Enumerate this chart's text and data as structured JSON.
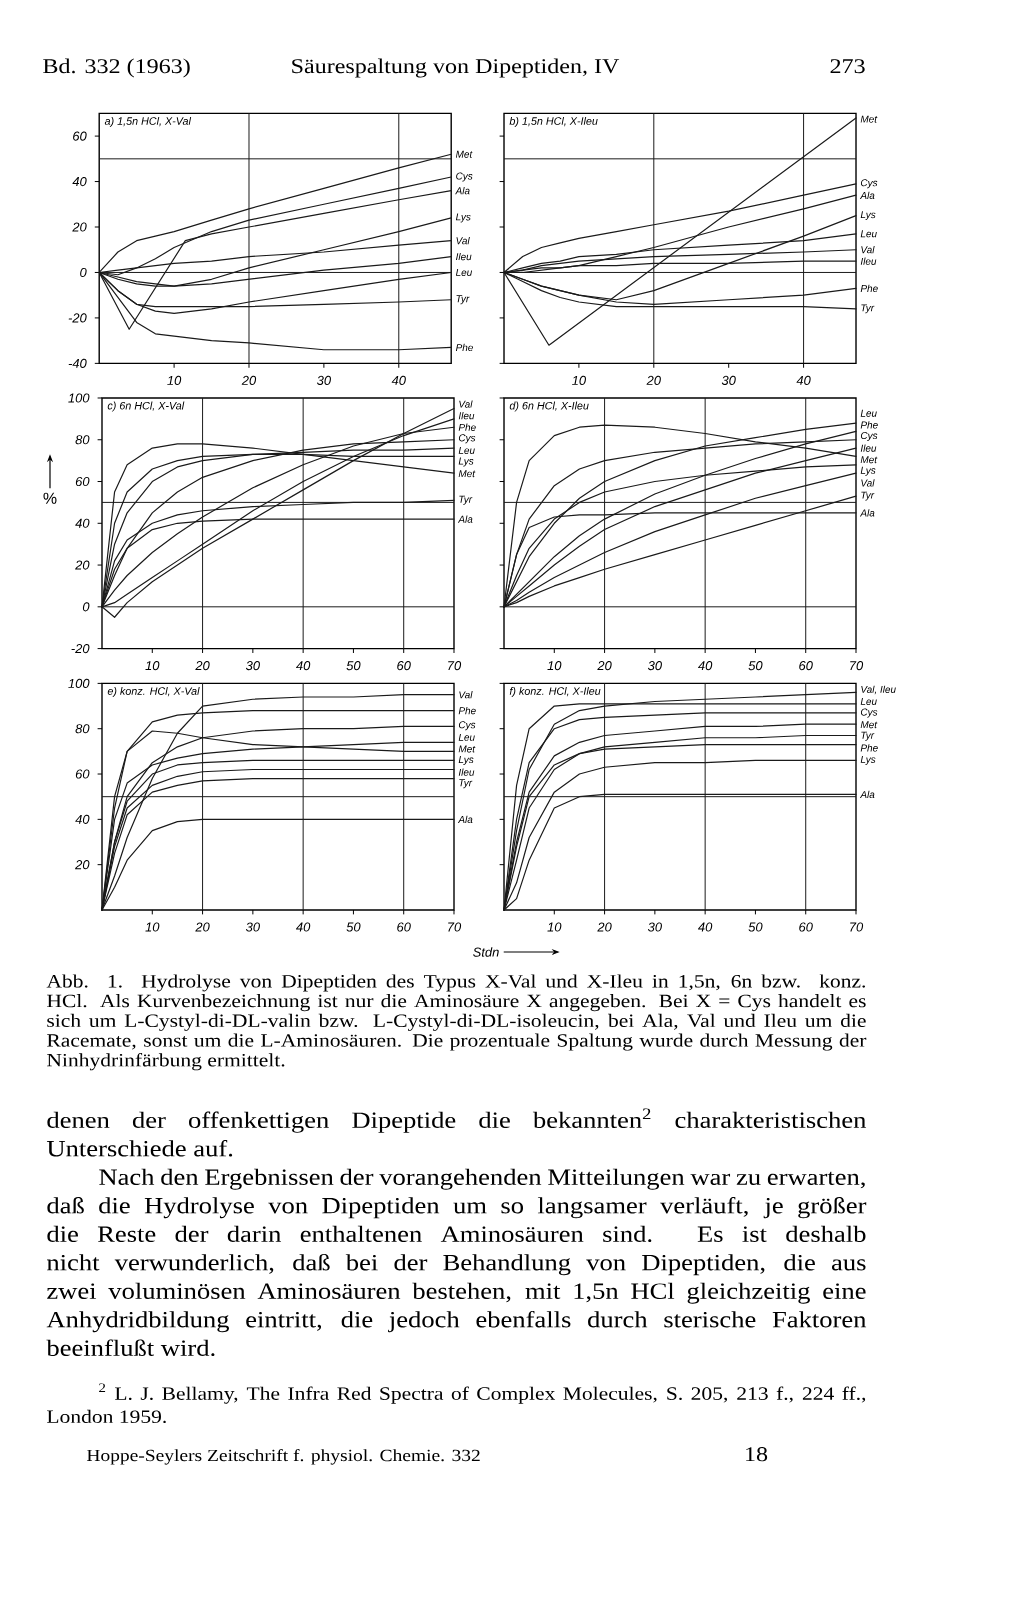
{
  "chart_data": [
    {
      "type": "line",
      "title": "a) 1,5n HCl, X-Val",
      "x": [
        0,
        2.5,
        5,
        7.5,
        10,
        15,
        20,
        30,
        40,
        47
      ],
      "series": [
        {
          "name": "Met",
          "color": "#1a1a1a",
          "values": [
            0,
            9,
            14,
            16,
            18,
            23,
            28,
            37,
            46,
            52
          ]
        },
        {
          "name": "Cys",
          "color": "#1a1a1a",
          "values": [
            0,
            -1,
            2,
            6,
            11,
            18,
            23,
            30,
            37,
            42
          ]
        },
        {
          "name": "Ala",
          "color": "#1a1a1a",
          "x": [
            0,
            4,
            11.5,
            15,
            20,
            30,
            40,
            47
          ],
          "values": [
            0,
            -25,
            14,
            17,
            20,
            26,
            32,
            36
          ]
        },
        {
          "name": "Lys",
          "color": "#1a1a1a",
          "values": [
            0,
            -3,
            -5,
            -6,
            -6,
            -3,
            2,
            10,
            18,
            24
          ]
        },
        {
          "name": "Val",
          "color": "#1a1a1a",
          "values": [
            0,
            1,
            2,
            3,
            4,
            5,
            7,
            9,
            12,
            14
          ]
        },
        {
          "name": "Ileu",
          "color": "#1a1a1a",
          "values": [
            0,
            -2,
            -4,
            -5,
            -6,
            -5,
            -3,
            1,
            4,
            7
          ]
        },
        {
          "name": "Leu",
          "color": "#1a1a1a",
          "values": [
            0,
            -8,
            -14,
            -17,
            -18,
            -16,
            -13,
            -8,
            -3,
            0
          ]
        },
        {
          "name": "Tyr",
          "color": "#1a1a1a",
          "values": [
            0,
            -8,
            -14,
            -15,
            -15,
            -15,
            -15,
            -14,
            -13,
            -12
          ]
        },
        {
          "name": "Phe",
          "color": "#1a1a1a",
          "values": [
            0,
            -11,
            -22,
            -27,
            -28,
            -30,
            -31,
            -34,
            -34,
            -33
          ]
        }
      ],
      "xlim": [
        0,
        47
      ],
      "ylim": [
        -40,
        70
      ],
      "xticks": [
        10,
        20,
        30,
        40
      ],
      "yticks": [
        -40,
        -20,
        0,
        20,
        40,
        60
      ],
      "ref_lines": [
        {
          "axis": "x",
          "value": 20
        },
        {
          "axis": "x",
          "value": 40
        },
        {
          "axis": "y",
          "value": 0
        },
        {
          "axis": "y",
          "value": 50
        }
      ]
    },
    {
      "type": "line",
      "title": "b) 1,5n HCl, X-Ileu",
      "x": [
        0,
        2.5,
        5,
        7.5,
        10,
        15,
        20,
        30,
        40,
        47
      ],
      "series": [
        {
          "name": "Met",
          "color": "#1a1a1a",
          "x": [
            0,
            6,
            47
          ],
          "values": [
            0,
            -32,
            68
          ]
        },
        {
          "name": "Cys",
          "color": "#1a1a1a",
          "values": [
            0,
            7,
            11,
            13,
            15,
            18,
            21,
            27,
            34,
            39
          ]
        },
        {
          "name": "Ala",
          "color": "#1a1a1a",
          "values": [
            0,
            0,
            1,
            2,
            3,
            7,
            11,
            20,
            28,
            34
          ]
        },
        {
          "name": "Lys",
          "color": "#1a1a1a",
          "values": [
            0,
            -3,
            -6,
            -8,
            -10,
            -12,
            -8,
            4,
            16,
            25
          ]
        },
        {
          "name": "Leu",
          "color": "#1a1a1a",
          "values": [
            0,
            2,
            4,
            5,
            7,
            8,
            10,
            12,
            14,
            17
          ]
        },
        {
          "name": "Val",
          "color": "#1a1a1a",
          "values": [
            0,
            1,
            3,
            4,
            5,
            6,
            7,
            8,
            9,
            10
          ]
        },
        {
          "name": "Ileu",
          "color": "#1a1a1a",
          "values": [
            0,
            1,
            2,
            2,
            3,
            3,
            4,
            4,
            5,
            5
          ]
        },
        {
          "name": "Phe",
          "color": "#1a1a1a",
          "values": [
            0,
            -3,
            -6,
            -8,
            -10,
            -13,
            -14,
            -12,
            -10,
            -7
          ]
        },
        {
          "name": "Tyr",
          "color": "#1a1a1a",
          "values": [
            0,
            -4,
            -8,
            -11,
            -13,
            -15,
            -15,
            -15,
            -15,
            -16
          ]
        }
      ],
      "xlim": [
        0,
        47
      ],
      "ylim": [
        -40,
        70
      ],
      "xticks": [
        10,
        20,
        30,
        40
      ],
      "yticks": [
        -40,
        -20,
        0,
        20,
        40,
        60
      ],
      "tick_labels": "x",
      "ref_lines": [
        {
          "axis": "x",
          "value": 20
        },
        {
          "axis": "x",
          "value": 40
        },
        {
          "axis": "y",
          "value": 0
        },
        {
          "axis": "y",
          "value": 50
        }
      ]
    },
    {
      "type": "line",
      "title": "c) 6n HCl, X-Val",
      "ylabel": "%",
      "x": [
        0,
        2.5,
        5,
        10,
        15,
        20,
        30,
        40,
        50,
        60,
        70
      ],
      "series": [
        {
          "name": "Val",
          "color": "#1a1a1a",
          "values": [
            0,
            -5,
            2,
            12,
            20,
            28,
            42,
            56,
            70,
            83,
            95
          ]
        },
        {
          "name": "Ileu",
          "color": "#1a1a1a",
          "values": [
            0,
            2,
            6,
            14,
            22,
            30,
            46,
            60,
            72,
            82,
            90
          ]
        },
        {
          "name": "Phe",
          "color": "#1a1a1a",
          "values": [
            0,
            8,
            15,
            26,
            35,
            43,
            57,
            68,
            77,
            83,
            86
          ]
        },
        {
          "name": "Cys",
          "color": "#1a1a1a",
          "values": [
            0,
            15,
            28,
            45,
            55,
            62,
            70,
            75,
            78,
            79,
            80
          ]
        },
        {
          "name": "Leu",
          "color": "#1a1a1a",
          "values": [
            0,
            30,
            45,
            60,
            67,
            70,
            73,
            74,
            75,
            75,
            76
          ]
        },
        {
          "name": "Lys",
          "color": "#1a1a1a",
          "values": [
            0,
            40,
            55,
            66,
            70,
            72,
            73,
            73,
            72,
            72,
            72
          ]
        },
        {
          "name": "Met",
          "color": "#1a1a1a",
          "values": [
            0,
            55,
            68,
            76,
            78,
            78,
            76,
            73,
            70,
            67,
            64
          ]
        },
        {
          "name": "Tyr",
          "color": "#1a1a1a",
          "values": [
            0,
            22,
            32,
            40,
            44,
            46,
            48,
            49,
            50,
            50,
            51
          ]
        },
        {
          "name": "Ala",
          "color": "#1a1a1a",
          "values": [
            0,
            18,
            28,
            37,
            40,
            41,
            42,
            42,
            42,
            42,
            42
          ]
        }
      ],
      "xlim": [
        0,
        70
      ],
      "ylim": [
        -20,
        100
      ],
      "xticks": [
        10,
        20,
        30,
        40,
        50,
        60,
        70
      ],
      "yticks": [
        -20,
        0,
        20,
        40,
        60,
        80,
        100
      ],
      "ref_lines": [
        {
          "axis": "x",
          "value": 20
        },
        {
          "axis": "x",
          "value": 40
        },
        {
          "axis": "x",
          "value": 60
        },
        {
          "axis": "y",
          "value": 0
        },
        {
          "axis": "y",
          "value": 50
        }
      ]
    },
    {
      "type": "line",
      "title": "d) 6n HCl, X-Ileu",
      "x": [
        0,
        2.5,
        5,
        10,
        15,
        20,
        30,
        40,
        50,
        60,
        70
      ],
      "series": [
        {
          "name": "Leu",
          "color": "#1a1a1a",
          "values": [
            0,
            12,
            24,
            40,
            52,
            60,
            70,
            77,
            81,
            85,
            88
          ]
        },
        {
          "name": "Phe",
          "color": "#1a1a1a",
          "values": [
            0,
            6,
            12,
            24,
            34,
            42,
            54,
            63,
            71,
            78,
            84
          ]
        },
        {
          "name": "Cys",
          "color": "#1a1a1a",
          "values": [
            0,
            25,
            42,
            58,
            66,
            70,
            74,
            76,
            78,
            79,
            80
          ]
        },
        {
          "name": "Ileu",
          "color": "#1a1a1a",
          "values": [
            0,
            5,
            10,
            20,
            29,
            37,
            48,
            56,
            64,
            70,
            76
          ]
        },
        {
          "name": "Met",
          "color": "#1a1a1a",
          "values": [
            0,
            50,
            70,
            82,
            86,
            87,
            86,
            83,
            79,
            76,
            72
          ]
        },
        {
          "name": "Lys",
          "color": "#1a1a1a",
          "values": [
            0,
            15,
            28,
            42,
            50,
            55,
            60,
            63,
            65,
            67,
            68
          ]
        },
        {
          "name": "Val",
          "color": "#1a1a1a",
          "values": [
            0,
            3,
            7,
            14,
            20,
            26,
            36,
            44,
            52,
            58,
            64
          ]
        },
        {
          "name": "Tyr",
          "color": "#1a1a1a",
          "values": [
            0,
            2,
            5,
            10,
            14,
            18,
            25,
            32,
            39,
            46,
            53
          ]
        },
        {
          "name": "Ala",
          "color": "#1a1a1a",
          "values": [
            0,
            25,
            38,
            43,
            44,
            44,
            45,
            45,
            45,
            45,
            45
          ]
        }
      ],
      "xlim": [
        0,
        70
      ],
      "ylim": [
        -20,
        100
      ],
      "xticks": [
        10,
        20,
        30,
        40,
        50,
        60,
        70
      ],
      "yticks": [
        -20,
        0,
        20,
        40,
        60,
        80,
        100
      ],
      "tick_labels": "x",
      "ref_lines": [
        {
          "axis": "x",
          "value": 20
        },
        {
          "axis": "x",
          "value": 40
        },
        {
          "axis": "x",
          "value": 60
        },
        {
          "axis": "y",
          "value": 0
        },
        {
          "axis": "y",
          "value": 50
        }
      ]
    },
    {
      "type": "line",
      "title": "e) konz. HCl, X-Val",
      "x": [
        0,
        2.5,
        5,
        10,
        15,
        20,
        30,
        40,
        50,
        60,
        70
      ],
      "series": [
        {
          "name": "Val",
          "color": "#1a1a1a",
          "values": [
            0,
            15,
            32,
            58,
            78,
            90,
            93,
            94,
            94,
            95,
            95
          ]
        },
        {
          "name": "Phe",
          "color": "#1a1a1a",
          "values": [
            0,
            45,
            70,
            83,
            86,
            87,
            88,
            88,
            88,
            88,
            88
          ]
        },
        {
          "name": "Cys",
          "color": "#1a1a1a",
          "values": [
            0,
            30,
            50,
            65,
            72,
            76,
            79,
            80,
            80,
            81,
            81
          ]
        },
        {
          "name": "Leu",
          "color": "#1a1a1a",
          "values": [
            0,
            40,
            56,
            64,
            67,
            69,
            71,
            72,
            73,
            74,
            74
          ]
        },
        {
          "name": "Met",
          "color": "#1a1a1a",
          "values": [
            0,
            50,
            70,
            79,
            78,
            76,
            73,
            72,
            71,
            70,
            70
          ]
        },
        {
          "name": "Lys",
          "color": "#1a1a1a",
          "values": [
            0,
            30,
            48,
            60,
            64,
            65,
            66,
            66,
            66,
            66,
            66
          ]
        },
        {
          "name": "Ileu",
          "color": "#1a1a1a",
          "values": [
            0,
            28,
            45,
            55,
            59,
            61,
            62,
            62,
            62,
            62,
            62
          ]
        },
        {
          "name": "Tyr",
          "color": "#1a1a1a",
          "values": [
            0,
            25,
            42,
            52,
            55,
            57,
            58,
            58,
            58,
            58,
            58
          ]
        },
        {
          "name": "Ala",
          "color": "#1a1a1a",
          "values": [
            0,
            10,
            22,
            35,
            39,
            40,
            40,
            40,
            40,
            40,
            40
          ]
        }
      ],
      "xlim": [
        0,
        70
      ],
      "ylim": [
        0,
        100
      ],
      "xticks": [
        10,
        20,
        30,
        40,
        50,
        60,
        70
      ],
      "yticks": [
        20,
        40,
        60,
        80,
        100
      ],
      "ref_lines": [
        {
          "axis": "x",
          "value": 20
        },
        {
          "axis": "x",
          "value": 40
        },
        {
          "axis": "x",
          "value": 60
        },
        {
          "axis": "y",
          "value": 50
        }
      ]
    },
    {
      "type": "line",
      "title": "f) konz. HCl, X-Ileu",
      "xlabel": "Stdn",
      "x": [
        0,
        2.5,
        5,
        10,
        15,
        20,
        30,
        40,
        50,
        60,
        70
      ],
      "series": [
        {
          "name": "Val, Ileu",
          "color": "#1a1a1a",
          "values": [
            0,
            35,
            62,
            82,
            88,
            90,
            92,
            93,
            94,
            95,
            96
          ]
        },
        {
          "name": "Leu",
          "color": "#1a1a1a",
          "values": [
            0,
            55,
            80,
            90,
            91,
            91,
            91,
            91,
            91,
            91,
            91
          ]
        },
        {
          "name": "Cys",
          "color": "#1a1a1a",
          "values": [
            0,
            40,
            65,
            80,
            84,
            85,
            86,
            87,
            87,
            87,
            87
          ]
        },
        {
          "name": "Met",
          "color": "#1a1a1a",
          "values": [
            0,
            30,
            52,
            68,
            74,
            77,
            79,
            81,
            81,
            82,
            82
          ]
        },
        {
          "name": "Tyr",
          "color": "#1a1a1a",
          "values": [
            0,
            22,
            45,
            62,
            69,
            72,
            74,
            76,
            76,
            77,
            77
          ]
        },
        {
          "name": "Phe",
          "color": "#1a1a1a",
          "values": [
            0,
            28,
            50,
            64,
            69,
            71,
            72,
            73,
            73,
            73,
            73
          ]
        },
        {
          "name": "Lys",
          "color": "#1a1a1a",
          "values": [
            0,
            12,
            32,
            52,
            60,
            63,
            65,
            65,
            66,
            66,
            66
          ]
        },
        {
          "name": "Ala",
          "color": "#1a1a1a",
          "values": [
            0,
            5,
            22,
            45,
            50,
            51,
            51,
            51,
            51,
            51,
            51
          ]
        }
      ],
      "xlim": [
        0,
        70
      ],
      "ylim": [
        0,
        100
      ],
      "xticks": [
        10,
        20,
        30,
        40,
        50,
        60,
        70
      ],
      "yticks": [
        20,
        40,
        60,
        80,
        100
      ],
      "tick_labels": "x",
      "ref_lines": [
        {
          "axis": "x",
          "value": 20
        },
        {
          "axis": "x",
          "value": 40
        },
        {
          "axis": "x",
          "value": 60
        },
        {
          "axis": "y",
          "value": 50
        }
      ]
    },
    {
      "type": "other",
      "annotations": [
        "Bd. 332 (1963)",
        "Säurespaltung von Dipeptiden, IV",
        "273",
        "Abb. 1. Hydrolyse von Dipeptiden des Typus X-Val und X-Ileu in 1,5n, 6n bzw. konz. HCl. Als Kurvenbezeichnung ist nur die Aminosäure X angegeben. Bei X = Cys handelt es sich um L-Cystyl-di-DL-valin bzw. L-Cystyl-di-DL-isoleucin, bei Ala, Val und Ileu um die Racemate, sonst um die L-Aminosäuren. Die prozentuale Spaltung wurde durch Messung der Ninhydrinfärbung ermittelt.",
        "denen der offenkettigen Dipeptide die bekannten$^{2}$ charakteristischen Unterschiede auf.",
        "Nach den Ergebnissen der vorangehenden Mitteilungen war zu erwarten, daß die Hydrolyse von Dipeptiden um so langsamer verläuft, je größer die Reste der darin enthaltenen Aminosäuren sind. Es ist deshalb nicht verwunderlich, daß bei der Behandlung von Dipeptiden, die aus zwei voluminösen Aminosäuren bestehen, mit 1,5n HCl gleichzeitig eine Anhydridbildung eintritt, die jedoch ebenfalls durch sterische Faktoren beeinflußt wird.",
        "$^{2}$ L. J. Bellamy, The Infra Red Spectra of Complex Molecules, S. 205, 213 f., 224 ff., London 1959.",
        "Hoppe-Seylers Zeitschrift f. physiol. Chemie. 332",
        "18"
      ]
    }
  ]
}
